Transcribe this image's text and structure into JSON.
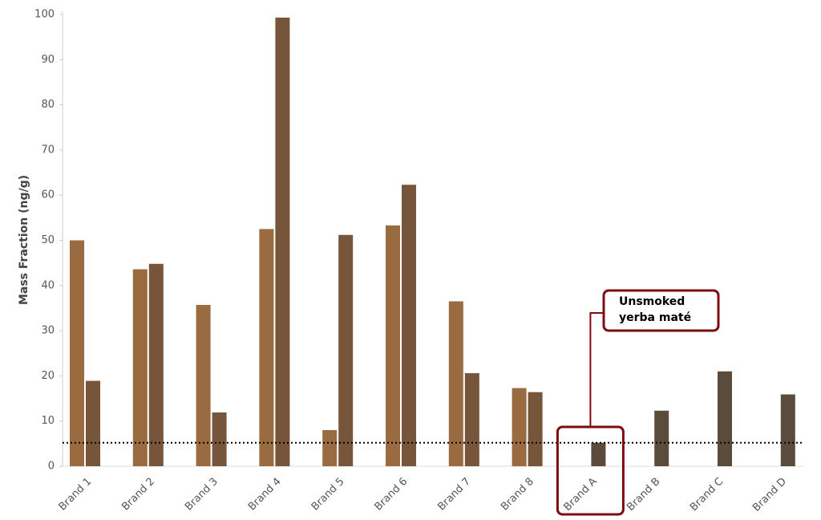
{
  "chart_data": {
    "type": "bar",
    "y_label": "Mass Fraction (ng/g)",
    "categories": [
      "Brand 1",
      "Brand 2",
      "Brand 3",
      "Brand 4",
      "Brand 5",
      "Brand 6",
      "Brand 7",
      "Brand 8",
      "Brand A",
      "Brand B",
      "Brand C",
      "Brand D"
    ],
    "series": [
      {
        "colors": [
          "#9a6b40",
          "#9a6b40",
          "#9a6b40",
          "#9a6b40",
          "#9a6b40",
          "#9a6b40",
          "#9a6b40",
          "#9a6b40",
          "#9a6b40",
          "#9a6b40",
          "#9a6b40",
          "#9a6b40"
        ],
        "values": [
          50,
          43.6,
          35.7,
          52.5,
          8,
          53.3,
          36.5,
          17.3,
          null,
          null,
          null,
          null
        ]
      },
      {
        "colors": [
          "#76553a",
          "#76553a",
          "#76553a",
          "#76553a",
          "#76553a",
          "#76553a",
          "#76553a",
          "#76553a",
          "#5a4b3d",
          "#5a4b3d",
          "#5a4b3d",
          "#5a4b3d"
        ],
        "values": [
          18.9,
          44.8,
          11.9,
          99.3,
          51.2,
          62.3,
          20.6,
          16.4,
          5.2,
          12.3,
          21,
          15.9
        ]
      }
    ],
    "reference_line": 5.2,
    "annotation": {
      "lines": [
        "Unsmoked",
        "yerba maté"
      ],
      "color": "#7b0d12"
    },
    "ylim": [
      0,
      100
    ],
    "yticks": [
      0,
      10,
      20,
      30,
      40,
      50,
      60,
      70,
      80,
      90,
      100
    ],
    "grid": false
  }
}
